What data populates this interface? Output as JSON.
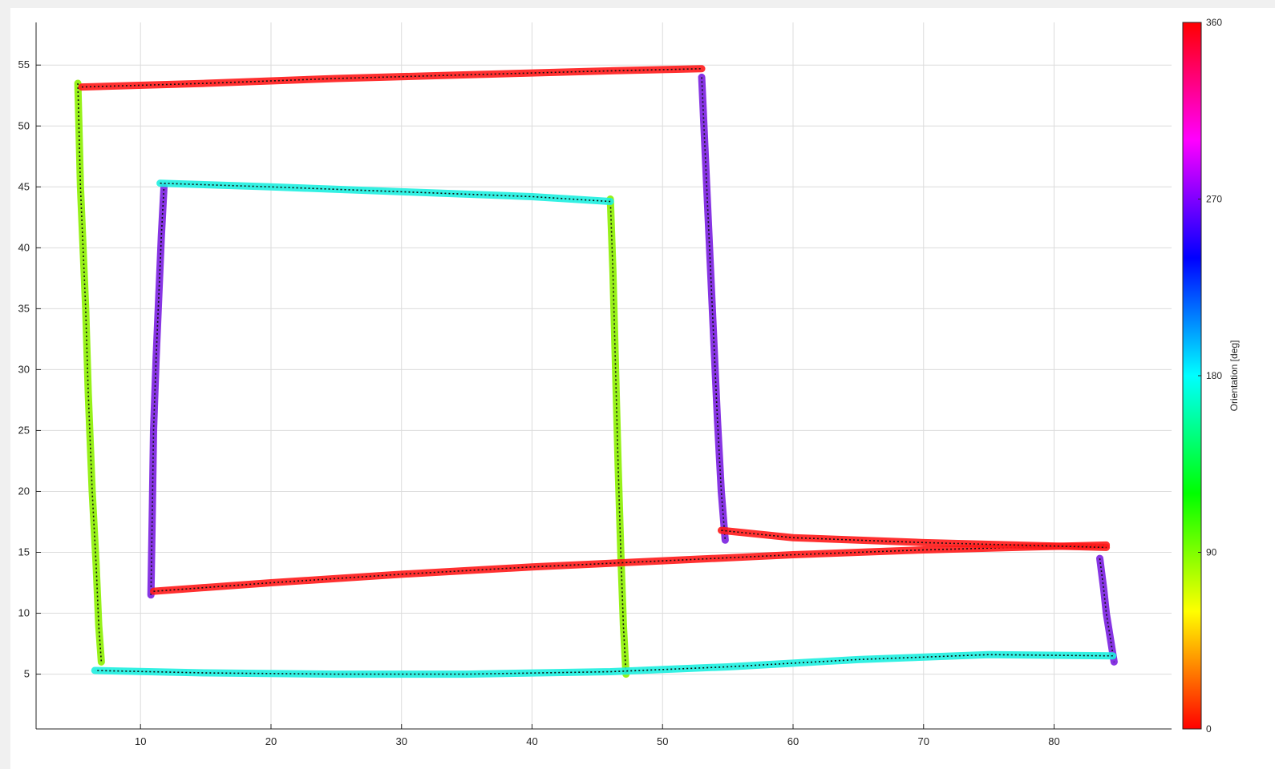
{
  "chart_data": {
    "type": "line",
    "title": "",
    "xlabel": "",
    "ylabel": "",
    "xlim": [
      2,
      89
    ],
    "ylim": [
      0.5,
      58.5
    ],
    "x_ticks": [
      10,
      20,
      30,
      40,
      50,
      60,
      70,
      80
    ],
    "y_ticks": [
      5,
      10,
      15,
      20,
      25,
      30,
      35,
      40,
      45,
      50,
      55
    ],
    "x_tick_labels": [
      "10",
      "20",
      "30",
      "40",
      "50",
      "60",
      "70",
      "80"
    ],
    "y_tick_labels": [
      "5",
      "10",
      "15",
      "20",
      "25",
      "30",
      "35",
      "40",
      "45",
      "50",
      "55"
    ],
    "grid": true,
    "colorbar": {
      "label": "Orientation [deg]",
      "range": [
        0,
        360
      ],
      "ticks": [
        0,
        90,
        180,
        270,
        360
      ],
      "tick_labels": [
        "0",
        "90",
        "180",
        "270",
        "360"
      ],
      "colormap": "hsv",
      "placement": "right"
    },
    "series": [
      {
        "orientation_deg": 90,
        "color": "#8cf000",
        "x": [
          5.2,
          5.4,
          5.8,
          6.0,
          6.3,
          6.6,
          6.8,
          7.0
        ],
        "y": [
          53.5,
          45,
          35,
          28,
          20,
          14,
          9,
          6
        ]
      },
      {
        "orientation_deg": 90,
        "color": "#8cf000",
        "x": [
          46.0,
          46.2,
          46.4,
          46.6,
          46.8,
          47.0,
          47.2
        ],
        "y": [
          44.0,
          38,
          30,
          22,
          15,
          9,
          5
        ]
      },
      {
        "orientation_deg": 270,
        "color": "#7a1fe0",
        "x": [
          10.8,
          10.9,
          11.0,
          11.2,
          11.4,
          11.6,
          11.8
        ],
        "y": [
          11.5,
          18,
          25,
          31,
          36,
          41,
          45
        ]
      },
      {
        "orientation_deg": 270,
        "color": "#7a1fe0",
        "x": [
          53.0,
          53.3,
          53.6,
          53.9,
          54.2,
          54.5,
          54.8
        ],
        "y": [
          54.0,
          47,
          40,
          33,
          26,
          20,
          16
        ]
      },
      {
        "orientation_deg": 270,
        "color": "#7a1fe0",
        "x": [
          83.5,
          83.8,
          84.0,
          84.3,
          84.6
        ],
        "y": [
          14.5,
          12,
          10,
          8,
          6
        ]
      },
      {
        "orientation_deg": 0,
        "color": "#ff1a1a",
        "x": [
          5.5,
          15,
          25,
          35,
          45,
          53
        ],
        "y": [
          53.2,
          53.5,
          53.9,
          54.2,
          54.5,
          54.7
        ]
      },
      {
        "orientation_deg": 0,
        "color": "#ff1a1a",
        "x": [
          11.0,
          20,
          30,
          40,
          50,
          60,
          70,
          84
        ],
        "y": [
          11.8,
          12.5,
          13.2,
          13.8,
          14.3,
          14.8,
          15.2,
          15.6
        ]
      },
      {
        "orientation_deg": 0,
        "color": "#ff1a1a",
        "x": [
          54.5,
          60,
          70,
          84
        ],
        "y": [
          16.8,
          16.2,
          15.8,
          15.4
        ]
      },
      {
        "orientation_deg": 180,
        "color": "#1ef0e0",
        "x": [
          46.0,
          40,
          30,
          20,
          11.5
        ],
        "y": [
          43.8,
          44.2,
          44.6,
          45.0,
          45.3
        ]
      },
      {
        "orientation_deg": 180,
        "color": "#1ef0e0",
        "x": [
          84.5,
          75,
          65,
          55,
          46,
          35,
          25,
          15,
          6.5
        ],
        "y": [
          6.5,
          6.6,
          6.2,
          5.6,
          5.2,
          5.0,
          5.0,
          5.1,
          5.3
        ]
      }
    ]
  }
}
